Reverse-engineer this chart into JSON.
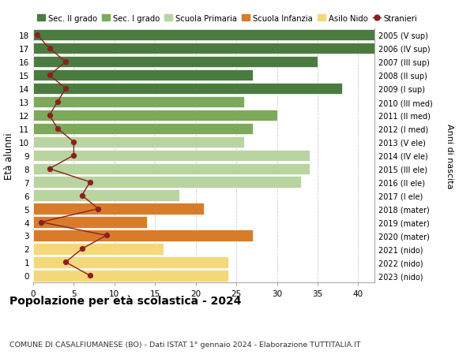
{
  "ages": [
    18,
    17,
    16,
    15,
    14,
    13,
    12,
    11,
    10,
    9,
    8,
    7,
    6,
    5,
    4,
    3,
    2,
    1,
    0
  ],
  "right_labels": [
    "2005 (V sup)",
    "2006 (IV sup)",
    "2007 (III sup)",
    "2008 (II sup)",
    "2009 (I sup)",
    "2010 (III med)",
    "2011 (II med)",
    "2012 (I med)",
    "2013 (V ele)",
    "2014 (IV ele)",
    "2015 (III ele)",
    "2016 (II ele)",
    "2017 (I ele)",
    "2018 (mater)",
    "2019 (mater)",
    "2020 (mater)",
    "2021 (nido)",
    "2022 (nido)",
    "2023 (nido)"
  ],
  "bar_values": [
    42,
    42,
    35,
    27,
    38,
    26,
    30,
    27,
    26,
    34,
    34,
    33,
    18,
    21,
    14,
    27,
    16,
    24,
    24
  ],
  "bar_colors": [
    "#4a7c3f",
    "#4a7c3f",
    "#4a7c3f",
    "#4a7c3f",
    "#4a7c3f",
    "#7daa5a",
    "#7daa5a",
    "#7daa5a",
    "#b8d4a0",
    "#b8d4a0",
    "#b8d4a0",
    "#b8d4a0",
    "#b8d4a0",
    "#d97c2a",
    "#d97c2a",
    "#d97c2a",
    "#f5d87a",
    "#f5d87a",
    "#f5d87a"
  ],
  "stranieri_values": [
    0.5,
    2,
    4,
    2,
    4,
    3,
    2,
    3,
    5,
    5,
    2,
    7,
    6,
    8,
    1,
    9,
    6,
    4,
    7
  ],
  "legend_labels": [
    "Sec. II grado",
    "Sec. I grado",
    "Scuola Primaria",
    "Scuola Infanzia",
    "Asilo Nido",
    "Stranieri"
  ],
  "legend_colors": [
    "#4a7c3f",
    "#7daa5a",
    "#b8d4a0",
    "#d97c2a",
    "#f5d87a",
    "#8b1a1a"
  ],
  "ylabel": "Età alunni",
  "right_ylabel": "Anni di nascita",
  "xlim": [
    0,
    42
  ],
  "xticks": [
    0,
    5,
    10,
    15,
    20,
    25,
    30,
    35,
    40
  ],
  "title": "Popolazione per età scolastica - 2024",
  "subtitle": "COMUNE DI CASALFIUMANESE (BO) - Dati ISTAT 1° gennaio 2024 - Elaborazione TUTTITALIA.IT",
  "bg_color": "#ffffff",
  "bar_edge_color": "#ffffff",
  "grid_color": "#cccccc",
  "stranieri_line_color": "#8b2020",
  "stranieri_dot_color": "#8b2020"
}
